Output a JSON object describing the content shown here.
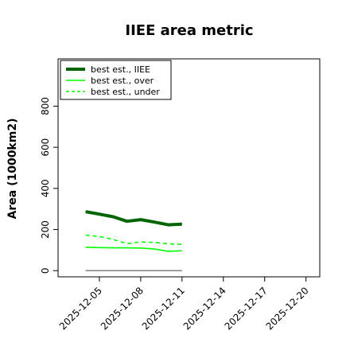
{
  "chart_data": {
    "type": "line",
    "title": "IIEE area metric",
    "xlabel": "",
    "ylabel": "Area (1000km2)",
    "x_ticks": [
      "2025-12-05",
      "2025-12-08",
      "2025-12-11",
      "2025-12-14",
      "2025-12-17",
      "2025-12-20"
    ],
    "y_ticks": [
      0,
      200,
      400,
      600,
      800
    ],
    "ylim": [
      -30,
      1030
    ],
    "x_range": [
      "2025-12-02",
      "2025-12-21"
    ],
    "grid": false,
    "legend_placement": "top-left",
    "baseline": {
      "value": 0,
      "x_start": "2025-12-04",
      "x_end": "2025-12-11",
      "color": "#808080"
    },
    "series": [
      {
        "name": "best est., IIEE",
        "color": "#006400",
        "line_style": "solid",
        "line_width": "thick",
        "x": [
          "2025-12-04",
          "2025-12-05",
          "2025-12-06",
          "2025-12-07",
          "2025-12-08",
          "2025-12-09",
          "2025-12-10",
          "2025-12-11"
        ],
        "values": [
          287,
          275,
          262,
          240,
          248,
          236,
          223,
          226
        ]
      },
      {
        "name": "best est., over",
        "color": "#00ff00",
        "line_style": "solid",
        "line_width": "normal",
        "x": [
          "2025-12-04",
          "2025-12-05",
          "2025-12-06",
          "2025-12-07",
          "2025-12-08",
          "2025-12-09",
          "2025-12-10",
          "2025-12-11"
        ],
        "values": [
          114,
          112,
          111,
          111,
          110,
          105,
          94,
          97
        ]
      },
      {
        "name": "best est., under",
        "color": "#00ff00",
        "line_style": "dashed",
        "line_width": "normal",
        "x": [
          "2025-12-04",
          "2025-12-05",
          "2025-12-06",
          "2025-12-07",
          "2025-12-08",
          "2025-12-09",
          "2025-12-10",
          "2025-12-11"
        ],
        "values": [
          173,
          166,
          152,
          131,
          140,
          137,
          131,
          128
        ]
      }
    ]
  }
}
